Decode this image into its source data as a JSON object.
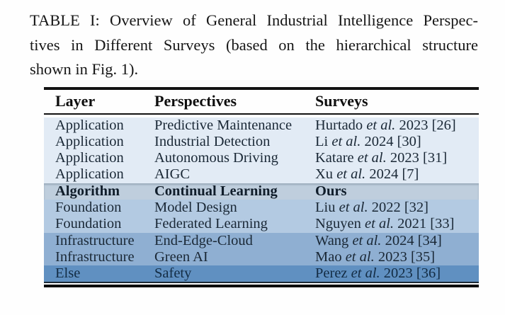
{
  "caption": {
    "lines": [
      "TABLE I: Overview of General Industrial Intelligence Perspec-",
      "tives in Different Surveys (based on the hierarchical structure",
      "shown in Fig. 1)."
    ],
    "full_text": "TABLE I: Overview of General Industrial Intelligence Perspectives in Different Surveys (based on the hierarchical structure shown in Fig. 1)."
  },
  "table": {
    "columns": [
      "Layer",
      "Perspectives",
      "Surveys"
    ],
    "rows": [
      {
        "layer": "Application",
        "perspective": "Predictive Maintenance",
        "survey": {
          "pre": "Hurtado ",
          "italic": "et al.",
          "post": " 2023 [26]"
        },
        "band": "application",
        "emphasis": false
      },
      {
        "layer": "Application",
        "perspective": "Industrial Detection",
        "survey": {
          "pre": "Li ",
          "italic": "et al.",
          "post": " 2024 [30]"
        },
        "band": "application",
        "emphasis": false
      },
      {
        "layer": "Application",
        "perspective": "Autonomous Driving",
        "survey": {
          "pre": "Katare ",
          "italic": "et al.",
          "post": " 2023 [31]"
        },
        "band": "application",
        "emphasis": false
      },
      {
        "layer": "Application",
        "perspective": "AIGC",
        "survey": {
          "pre": "Xu ",
          "italic": "et al.",
          "post": " 2024 [7]"
        },
        "band": "application",
        "emphasis": false
      },
      {
        "layer": "Algorithm",
        "perspective": "Continual Learning",
        "survey": {
          "pre": "Ours",
          "italic": "",
          "post": ""
        },
        "band": "algorithm",
        "emphasis": true
      },
      {
        "layer": "Foundation",
        "perspective": "Model Design",
        "survey": {
          "pre": "Liu ",
          "italic": "et al.",
          "post": " 2022 [32]"
        },
        "band": "foundation",
        "emphasis": false
      },
      {
        "layer": "Foundation",
        "perspective": "Federated Learning",
        "survey": {
          "pre": "Nguyen ",
          "italic": "et al.",
          "post": " 2021 [33]"
        },
        "band": "foundation",
        "emphasis": false
      },
      {
        "layer": "Infrastructure",
        "perspective": "End-Edge-Cloud",
        "survey": {
          "pre": "Wang ",
          "italic": "et al.",
          "post": " 2024 [34]"
        },
        "band": "infrastructure",
        "emphasis": false
      },
      {
        "layer": "Infrastructure",
        "perspective": "Green AI",
        "survey": {
          "pre": "Mao ",
          "italic": "et al.",
          "post": " 2023 [35]"
        },
        "band": "infrastructure",
        "emphasis": false
      },
      {
        "layer": "Else",
        "perspective": "Safety",
        "survey": {
          "pre": "Perez ",
          "italic": "et al.",
          "post": " 2023 [36]"
        },
        "band": "else",
        "emphasis": false
      }
    ]
  },
  "colors": {
    "band_application": "#e2ebf5",
    "band_algorithm": "#bfcedd",
    "band_foundation": "#b3cae2",
    "band_infrastructure": "#8fafd2",
    "band_else": "#6090c1",
    "rule": "#131313",
    "body_text": "#1a2836",
    "caption_text": "#161616"
  }
}
